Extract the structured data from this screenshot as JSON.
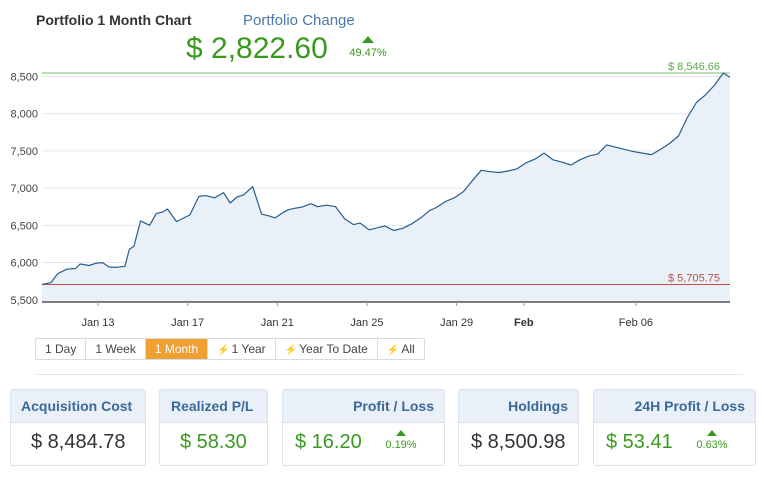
{
  "header": {
    "title": "Portfolio 1 Month Chart",
    "change_label": "Portfolio Change",
    "change_value": "$ 2,822.60",
    "change_pct": "49.47%"
  },
  "chart_data": {
    "type": "area",
    "y_ticks": [
      "8,500",
      "8,000",
      "7,500",
      "7,000",
      "6,500",
      "6,000",
      "5,500"
    ],
    "y_tick_values": [
      8500,
      8000,
      7500,
      7000,
      6500,
      6000,
      5500
    ],
    "x_ticks": [
      "Jan 13",
      "Jan 17",
      "Jan 21",
      "Jan 25",
      "Jan 29",
      "Feb",
      "Feb 06"
    ],
    "x_tick_values": [
      13,
      17,
      21,
      25,
      29,
      32,
      37
    ],
    "bold_x_tick": "Feb",
    "xlim": [
      10.5,
      41.2
    ],
    "ylim": [
      5470,
      8560
    ],
    "max_label": "$ 8,546.66",
    "max_value": 8546.66,
    "min_label": "$ 5,705.75",
    "min_value": 5705.75,
    "colors": {
      "line": "#2a5d8c",
      "fill": "#e9f0f7",
      "max": "#7cc26a",
      "min": "#c0504d",
      "grid": "#e4e8ec",
      "axis": "#333333"
    },
    "x": [
      10.5,
      10.9,
      11.2,
      11.6,
      12.0,
      12.2,
      12.6,
      12.9,
      13.2,
      13.5,
      13.8,
      14.2,
      14.4,
      14.6,
      14.9,
      15.3,
      15.6,
      15.9,
      16.1,
      16.5,
      16.7,
      17.1,
      17.5,
      17.8,
      18.2,
      18.6,
      18.9,
      19.2,
      19.5,
      19.9,
      20.3,
      20.6,
      20.9,
      21.3,
      21.5,
      21.8,
      22.1,
      22.5,
      22.8,
      23.2,
      23.6,
      24.0,
      24.4,
      24.7,
      25.1,
      25.5,
      25.8,
      26.2,
      26.6,
      27.0,
      27.4,
      27.8,
      28.1,
      28.5,
      28.9,
      29.3,
      29.7,
      30.1,
      30.5,
      30.9,
      31.3,
      31.7,
      32.1,
      32.5,
      32.9,
      33.3,
      33.7,
      34.1,
      34.5,
      34.9,
      35.3,
      35.7,
      36.1,
      36.5,
      36.9,
      37.3,
      37.7,
      38.1,
      38.5,
      38.9,
      39.3,
      39.7,
      40.1,
      40.5,
      40.9,
      41.2
    ],
    "y": [
      5705.75,
      5730,
      5850,
      5910,
      5920,
      5980,
      5960,
      5990,
      6000,
      5940,
      5935,
      5950,
      6180,
      6220,
      6560,
      6500,
      6660,
      6680,
      6720,
      6550,
      6580,
      6640,
      6890,
      6900,
      6870,
      6940,
      6800,
      6880,
      6910,
      7020,
      6650,
      6630,
      6600,
      6680,
      6710,
      6730,
      6745,
      6790,
      6750,
      6770,
      6750,
      6590,
      6510,
      6530,
      6440,
      6470,
      6490,
      6430,
      6460,
      6520,
      6600,
      6700,
      6740,
      6820,
      6870,
      6950,
      7100,
      7240,
      7220,
      7210,
      7230,
      7260,
      7340,
      7390,
      7470,
      7380,
      7350,
      7310,
      7380,
      7430,
      7460,
      7580,
      7550,
      7520,
      7490,
      7470,
      7450,
      7520,
      7600,
      7700,
      7950,
      8150,
      8250,
      8380,
      8546.66,
      8490
    ]
  },
  "range_tabs": [
    {
      "label": "1 Day",
      "bolt": false
    },
    {
      "label": "1 Week",
      "bolt": false
    },
    {
      "label": "1 Month",
      "bolt": false,
      "active": true
    },
    {
      "label": "1 Year",
      "bolt": true
    },
    {
      "label": "Year To Date",
      "bolt": true
    },
    {
      "label": "All",
      "bolt": true
    }
  ],
  "cards": [
    {
      "label": "Acquisition Cost",
      "value": "$ 8,484.78",
      "color": "dark",
      "pct": null
    },
    {
      "label": "Realized P/L",
      "value": "$ 58.30",
      "color": "green",
      "pct": null
    },
    {
      "label": "Profit / Loss",
      "value": "$ 16.20",
      "color": "green",
      "pct": "0.19%"
    },
    {
      "label": "Holdings",
      "value": "$ 8,500.98",
      "color": "dark",
      "pct": null
    },
    {
      "label": "24H Profit / Loss",
      "value": "$ 53.41",
      "color": "green",
      "pct": "0.63%"
    }
  ]
}
